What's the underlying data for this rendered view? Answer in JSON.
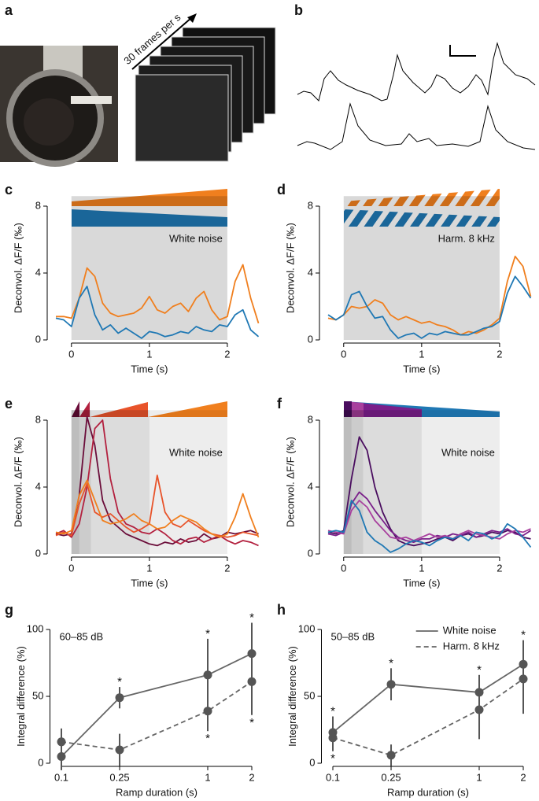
{
  "panels": {
    "a": {
      "label": "a",
      "caption": "30 frames per s"
    },
    "b": {
      "label": "b"
    }
  },
  "chart_data": [
    {
      "type": "line",
      "panel": "c",
      "annotation": "White noise",
      "y_label": "Deconvol. ΔF/F (‰)",
      "x_label": "Time (s)",
      "xlim": [
        -0.25,
        2.45
      ],
      "ylim": [
        0,
        8.6
      ],
      "xticks": [
        0,
        1,
        2
      ],
      "yticks": [
        0,
        4,
        8
      ],
      "shades": [
        [
          0,
          2
        ]
      ],
      "x": [
        -0.2,
        -0.1,
        0,
        0.1,
        0.2,
        0.3,
        0.4,
        0.5,
        0.6,
        0.7,
        0.8,
        0.9,
        1,
        1.1,
        1.2,
        1.3,
        1.4,
        1.5,
        1.6,
        1.7,
        1.8,
        1.9,
        2,
        2.1,
        2.2,
        2.3,
        2.4
      ],
      "series": [
        {
          "color": "#f07f1e",
          "values": [
            1.4,
            1.4,
            1.3,
            2.5,
            4.3,
            3.8,
            2.2,
            1.6,
            1.4,
            1.5,
            1.6,
            1.9,
            2.6,
            1.8,
            1.6,
            2.0,
            2.2,
            1.7,
            2.5,
            2.9,
            1.8,
            1.2,
            1.4,
            3.5,
            4.5,
            2.5,
            1.0
          ]
        },
        {
          "color": "#1f78b4",
          "values": [
            1.3,
            1.2,
            0.8,
            2.5,
            3.2,
            1.5,
            0.6,
            0.9,
            0.4,
            0.7,
            0.4,
            0.1,
            0.5,
            0.4,
            0.2,
            0.3,
            0.5,
            0.4,
            0.8,
            0.6,
            0.5,
            0.9,
            0.8,
            1.5,
            1.8,
            0.6,
            0.2
          ]
        }
      ]
    },
    {
      "type": "line",
      "panel": "d",
      "annotation": "Harm. 8 kHz",
      "y_label": "Deconvol. ΔF/F (‰)",
      "x_label": "Time (s)",
      "xlim": [
        -0.25,
        2.45
      ],
      "ylim": [
        0,
        8.6
      ],
      "xticks": [
        0,
        1,
        2
      ],
      "yticks": [
        0,
        4,
        8
      ],
      "shades": [
        [
          0,
          2
        ]
      ],
      "x": [
        -0.2,
        -0.1,
        0,
        0.1,
        0.2,
        0.3,
        0.4,
        0.5,
        0.6,
        0.7,
        0.8,
        0.9,
        1,
        1.1,
        1.2,
        1.3,
        1.4,
        1.5,
        1.6,
        1.7,
        1.8,
        1.9,
        2,
        2.1,
        2.2,
        2.3,
        2.4
      ],
      "series": [
        {
          "color": "#f07f1e",
          "values": [
            1.3,
            1.2,
            1.5,
            2.0,
            1.9,
            2.0,
            2.4,
            2.2,
            1.5,
            1.2,
            1.4,
            1.2,
            1.0,
            1.1,
            0.9,
            0.8,
            0.6,
            0.3,
            0.5,
            0.4,
            0.6,
            0.9,
            1.3,
            3.5,
            5.0,
            4.4,
            2.6
          ]
        },
        {
          "color": "#1f78b4",
          "values": [
            1.5,
            1.2,
            1.5,
            2.7,
            2.9,
            2.0,
            1.3,
            1.4,
            0.6,
            0.1,
            0.3,
            0.4,
            0.1,
            0.4,
            0.3,
            0.5,
            0.4,
            0.3,
            0.3,
            0.5,
            0.7,
            0.8,
            1.1,
            2.8,
            3.8,
            3.2,
            2.5
          ]
        }
      ]
    },
    {
      "type": "line",
      "panel": "e",
      "annotation": "White noise",
      "y_label": "Deconvol. ΔF/F (‰)",
      "x_label": "Time (s)",
      "xlim": [
        -0.25,
        2.45
      ],
      "ylim": [
        0,
        8.6
      ],
      "xticks": [
        0,
        1,
        2
      ],
      "yticks": [
        0,
        4,
        8
      ],
      "shades": [
        [
          0,
          0.1
        ],
        [
          0,
          0.25
        ],
        [
          0,
          1
        ],
        [
          0,
          2
        ]
      ],
      "x": [
        -0.2,
        -0.1,
        0,
        0.1,
        0.2,
        0.3,
        0.4,
        0.5,
        0.6,
        0.7,
        0.8,
        0.9,
        1,
        1.1,
        1.2,
        1.3,
        1.4,
        1.5,
        1.6,
        1.7,
        1.8,
        1.9,
        2,
        2.1,
        2.2,
        2.3,
        2.4
      ],
      "series": [
        {
          "color": "#6b0d3a",
          "values": [
            1.2,
            1.1,
            1.2,
            3.5,
            8.2,
            6.5,
            3.2,
            2.0,
            1.6,
            1.2,
            1.0,
            0.8,
            0.6,
            0.5,
            0.7,
            0.6,
            0.9,
            0.7,
            0.8,
            1.2,
            0.9,
            1.0,
            1.3,
            1.2,
            1.3,
            1.4,
            1.2
          ]
        },
        {
          "color": "#b3213f",
          "values": [
            1.2,
            1.4,
            1.0,
            1.8,
            4.0,
            7.5,
            8.0,
            4.5,
            2.5,
            1.8,
            1.6,
            1.3,
            1.2,
            1.5,
            1.2,
            0.8,
            0.6,
            0.9,
            1.0,
            0.7,
            0.9,
            1.1,
            0.8,
            0.6,
            0.8,
            0.7,
            0.5
          ]
        },
        {
          "color": "#e8532a",
          "values": [
            1.1,
            1.3,
            1.1,
            3.0,
            4.2,
            2.5,
            2.2,
            2.4,
            2.0,
            1.6,
            1.3,
            1.5,
            1.8,
            4.7,
            2.5,
            1.8,
            1.6,
            2.0,
            1.7,
            1.4,
            1.2,
            1.1,
            1.0,
            1.1,
            1.3,
            1.2,
            1.1
          ]
        },
        {
          "color": "#f07f1e",
          "values": [
            1.3,
            1.2,
            1.4,
            3.5,
            4.4,
            3.2,
            2.0,
            1.8,
            1.9,
            2.1,
            2.4,
            2.0,
            1.8,
            1.5,
            1.6,
            2.0,
            2.3,
            2.1,
            1.9,
            1.5,
            1.2,
            1.0,
            1.2,
            2.2,
            3.6,
            2.2,
            1.0
          ]
        }
      ]
    },
    {
      "type": "line",
      "panel": "f",
      "annotation": "White noise",
      "y_label": "Deconvol. ΔF/F (‰)",
      "x_label": "Time (s)",
      "xlim": [
        -0.25,
        2.45
      ],
      "ylim": [
        0,
        8.6
      ],
      "xticks": [
        0,
        1,
        2
      ],
      "yticks": [
        0,
        4,
        8
      ],
      "shades": [
        [
          0,
          0.1
        ],
        [
          0,
          0.25
        ],
        [
          0,
          1
        ],
        [
          0,
          2
        ]
      ],
      "x": [
        -0.2,
        -0.1,
        0,
        0.1,
        0.2,
        0.3,
        0.4,
        0.5,
        0.6,
        0.7,
        0.8,
        0.9,
        1,
        1.1,
        1.2,
        1.3,
        1.4,
        1.5,
        1.6,
        1.7,
        1.8,
        1.9,
        2,
        2.1,
        2.2,
        2.3,
        2.4
      ],
      "series": [
        {
          "color": "#4a0d5f",
          "values": [
            1.3,
            1.2,
            1.4,
            4.5,
            7.0,
            6.2,
            4.0,
            2.5,
            1.5,
            0.8,
            0.6,
            0.5,
            0.6,
            0.7,
            0.9,
            1.0,
            0.8,
            1.1,
            1.2,
            1.0,
            1.1,
            1.3,
            1.2,
            1.4,
            1.3,
            1.0,
            0.9
          ]
        },
        {
          "color": "#7a1f8a",
          "values": [
            1.2,
            1.1,
            1.3,
            3.0,
            3.7,
            3.3,
            2.6,
            2.0,
            1.4,
            1.0,
            0.8,
            0.7,
            0.9,
            0.9,
            1.1,
            1.0,
            1.2,
            1.1,
            1.3,
            1.0,
            1.2,
            1.4,
            1.3,
            1.5,
            1.2,
            1.1,
            1.4
          ]
        },
        {
          "color": "#a8409e",
          "values": [
            1.4,
            1.3,
            1.2,
            2.6,
            3.2,
            2.8,
            2.0,
            1.5,
            1.0,
            0.9,
            1.0,
            0.8,
            1.0,
            1.2,
            1.0,
            1.1,
            0.9,
            1.2,
            1.4,
            1.2,
            1.1,
            1.0,
            0.9,
            1.2,
            1.4,
            1.3,
            1.5
          ]
        },
        {
          "color": "#1f78b4",
          "values": [
            1.3,
            1.4,
            1.3,
            3.2,
            2.6,
            1.3,
            0.8,
            0.5,
            0.1,
            0.3,
            0.6,
            0.8,
            0.7,
            0.5,
            0.8,
            1.0,
            0.9,
            1.1,
            0.8,
            1.3,
            1.2,
            0.9,
            1.1,
            1.8,
            1.5,
            1.0,
            0.4
          ]
        }
      ]
    },
    {
      "type": "errorbar",
      "panel": "g",
      "annotation": "60–85 dB",
      "y_label": "Integral difference (%)",
      "x_label": "Ramp duration (s)",
      "log_x": true,
      "xlim": [
        0.09,
        2.2
      ],
      "ylim": [
        0,
        100
      ],
      "xticks": [
        0.1,
        0.25,
        1,
        2
      ],
      "yticks": [
        0,
        50,
        100
      ],
      "x": [
        0.1,
        0.25,
        1,
        2
      ],
      "series": [
        {
          "color": "#666666",
          "dash": false,
          "values": [
            5,
            49,
            66,
            82
          ],
          "errors": [
            10,
            8,
            27,
            23
          ],
          "annotations": [
            null,
            "*",
            "*",
            "*"
          ],
          "annotation_side": "above"
        },
        {
          "color": "#666666",
          "dash": true,
          "values": [
            16,
            10,
            39,
            61
          ],
          "errors": [
            10,
            12,
            15,
            25
          ],
          "annotations": [
            null,
            null,
            "*",
            "*"
          ],
          "annotation_side": "below"
        }
      ]
    },
    {
      "type": "errorbar",
      "panel": "h",
      "annotation": "50–85 dB",
      "y_label": "Integral difference (%)",
      "x_label": "Ramp duration (s)",
      "log_x": true,
      "xlim": [
        0.09,
        2.2
      ],
      "ylim": [
        0,
        100
      ],
      "xticks": [
        0.1,
        0.25,
        1,
        2
      ],
      "yticks": [
        0,
        50,
        100
      ],
      "legend": "upper right",
      "x": [
        0.1,
        0.25,
        1,
        2
      ],
      "series": [
        {
          "name": "White noise",
          "color": "#666666",
          "dash": false,
          "values": [
            23,
            59,
            53,
            74
          ],
          "errors": [
            12,
            12,
            13,
            18
          ],
          "annotations": [
            "*",
            "*",
            "*",
            "*"
          ],
          "annotation_side": "above"
        },
        {
          "name": "Harm. 8 kHz",
          "color": "#666666",
          "dash": true,
          "values": [
            19,
            6,
            40,
            63
          ],
          "errors": [
            10,
            8,
            22,
            26
          ],
          "annotations": [
            "*",
            null,
            null,
            null
          ],
          "annotation_side": "below"
        }
      ]
    }
  ]
}
